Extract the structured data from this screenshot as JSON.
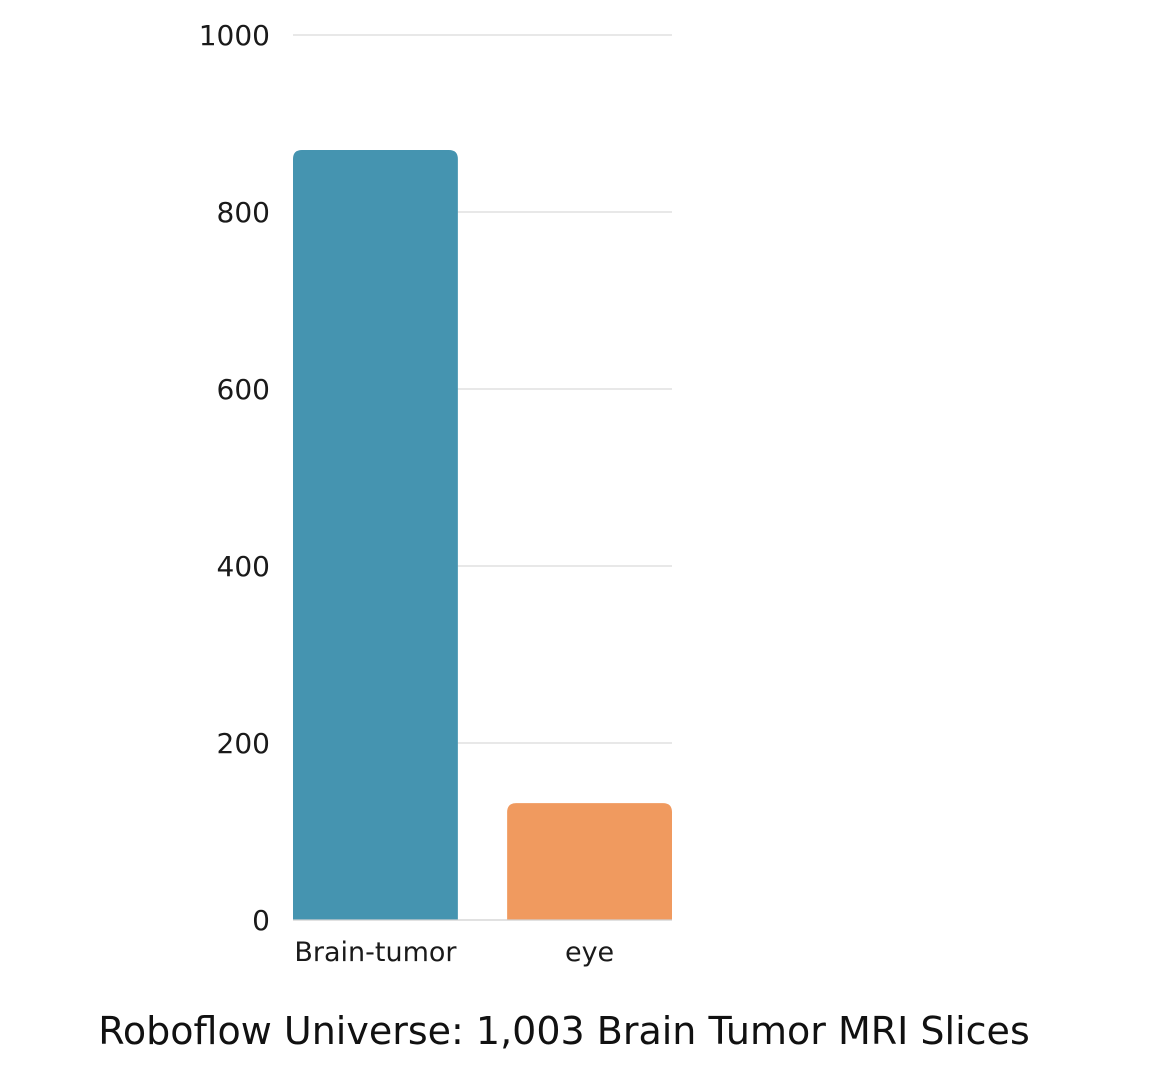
{
  "chart_data": {
    "type": "bar",
    "title": "Roboflow Universe: 1,003 Brain Tumor MRI Slices",
    "xlabel": "",
    "ylabel": "",
    "categories": [
      "Brain-tumor",
      "eye"
    ],
    "values": [
      870,
      132
    ],
    "ylim": [
      0,
      1000
    ],
    "yticks": [
      0,
      200,
      400,
      600,
      800,
      1000
    ],
    "grid": true,
    "legend": "none",
    "colors": [
      "#4594b0",
      "#f09a5f"
    ]
  }
}
